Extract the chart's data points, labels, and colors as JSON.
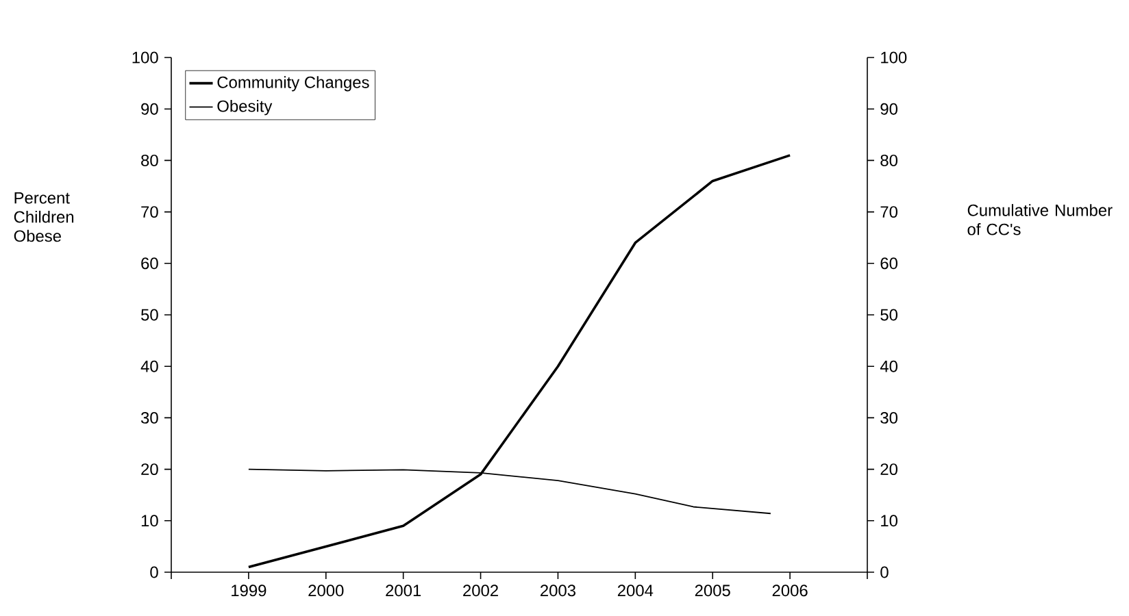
{
  "chart_data": {
    "type": "line",
    "xlim": [
      1998,
      2007
    ],
    "xticks": [
      {
        "value": 1998,
        "label": null
      },
      1999,
      2000,
      2001,
      2002,
      2003,
      2004,
      2005,
      2006,
      {
        "value": 2007,
        "label": null
      }
    ],
    "ylim": [
      0,
      100
    ],
    "yticks": [
      0,
      10,
      20,
      30,
      40,
      50,
      60,
      70,
      80,
      90,
      100
    ],
    "y2lim": [
      0,
      100
    ],
    "y2ticks": [
      0,
      10,
      20,
      30,
      40,
      50,
      60,
      70,
      80,
      90,
      100
    ],
    "ylabel": "Percent Children Obese",
    "y2label": "Cumulative Number of CC's",
    "legend": "top left",
    "grid": false,
    "marker": "none",
    "line_style": "solid",
    "series": [
      {
        "name": "Community Changes",
        "color": "#000000",
        "axis": "y2",
        "x": [
          1999,
          2000,
          2001,
          2002,
          2003,
          2004,
          2005,
          2006
        ],
        "values": [
          1,
          5,
          9,
          19,
          40,
          64,
          76,
          81
        ]
      },
      {
        "name": "Obesity",
        "color": "#000000",
        "x": [
          1999,
          2000,
          2001,
          2002,
          2003,
          2004,
          2004.75,
          2005.75
        ],
        "values": [
          20,
          19.7,
          19.9,
          19.3,
          17.8,
          15.2,
          12.7,
          11.4
        ]
      }
    ]
  }
}
